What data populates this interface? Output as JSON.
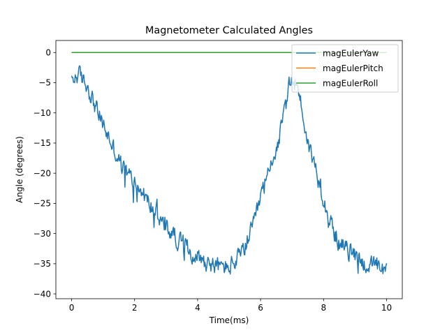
{
  "chart_data": {
    "type": "line",
    "title": "Magnetometer Calculated Angles",
    "xlabel": "Time(ms)",
    "ylabel": "Angle (degrees)",
    "xlim": [
      -0.5,
      10.5
    ],
    "ylim": [
      -40.8,
      2.0
    ],
    "xticks": [
      0,
      2,
      4,
      6,
      8,
      10
    ],
    "xtick_labels": [
      "0",
      "2",
      "4",
      "6",
      "8",
      "10"
    ],
    "yticks": [
      0,
      -5,
      -10,
      -15,
      -20,
      -25,
      -30,
      -35,
      -40
    ],
    "ytick_labels": [
      "0",
      "−5",
      "−10",
      "−15",
      "−20",
      "−25",
      "−30",
      "−35",
      "−40"
    ],
    "grid": false,
    "legend_position": "upper-right",
    "colors": {
      "yaw": "#1f77b4",
      "pitch": "#ff7f0e",
      "roll": "#2ca02c"
    },
    "series": [
      {
        "name": "magEulerYaw",
        "noisy": true,
        "x": [
          0,
          0.2,
          0.5,
          0.8,
          1.0,
          1.3,
          1.6,
          2.0,
          2.4,
          2.8,
          3.0,
          3.4,
          3.8,
          4.2,
          4.6,
          5.0,
          5.4,
          5.8,
          6.0,
          6.2,
          6.4,
          6.6,
          6.8,
          6.9,
          7.0,
          7.1,
          7.2,
          7.3,
          7.5,
          7.8,
          8.0,
          8.2,
          8.5,
          8.8,
          9.0,
          9.3,
          9.6,
          10.0
        ],
        "y": [
          -5.0,
          -3.5,
          -5.5,
          -9.5,
          -12.0,
          -15.5,
          -19.0,
          -21.5,
          -24.5,
          -27.5,
          -29.0,
          -31.0,
          -33.0,
          -34.5,
          -35.5,
          -35.5,
          -33.5,
          -28.5,
          -24.0,
          -21.0,
          -17.5,
          -14.0,
          -9.0,
          -6.0,
          -4.5,
          -5.0,
          -6.0,
          -9.0,
          -15.0,
          -20.0,
          -24.0,
          -28.0,
          -31.5,
          -33.0,
          -33.5,
          -35.0,
          -35.5,
          -36.5
        ]
      },
      {
        "name": "magEulerPitch",
        "noisy": false,
        "x": [
          0,
          10
        ],
        "y": [
          0,
          0
        ]
      },
      {
        "name": "magEulerRoll",
        "noisy": false,
        "x": [
          0,
          10
        ],
        "y": [
          0,
          0
        ]
      }
    ]
  }
}
